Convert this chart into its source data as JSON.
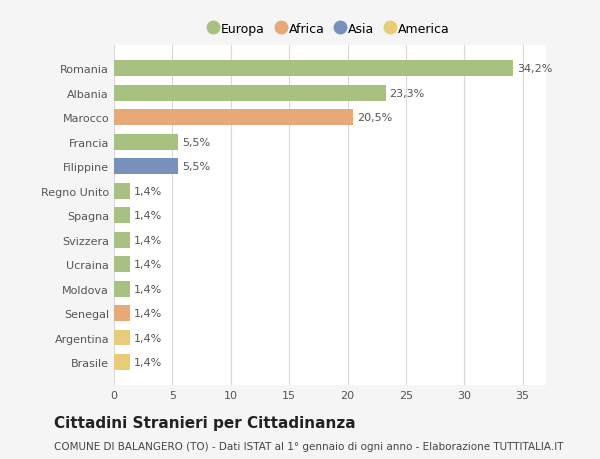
{
  "categories": [
    "Brasile",
    "Argentina",
    "Senegal",
    "Moldova",
    "Ucraina",
    "Svizzera",
    "Spagna",
    "Regno Unito",
    "Filippine",
    "Francia",
    "Marocco",
    "Albania",
    "Romania"
  ],
  "values": [
    1.4,
    1.4,
    1.4,
    1.4,
    1.4,
    1.4,
    1.4,
    1.4,
    5.5,
    5.5,
    20.5,
    23.3,
    34.2
  ],
  "colors": [
    "#e8cc78",
    "#e8cc78",
    "#e8a878",
    "#a8c080",
    "#a8c080",
    "#a8c080",
    "#a8c080",
    "#a8c080",
    "#7890bc",
    "#a8c080",
    "#e8a878",
    "#a8c080",
    "#a8c080"
  ],
  "labels": [
    "1,4%",
    "1,4%",
    "1,4%",
    "1,4%",
    "1,4%",
    "1,4%",
    "1,4%",
    "1,4%",
    "5,5%",
    "5,5%",
    "20,5%",
    "23,3%",
    "34,2%"
  ],
  "legend": [
    {
      "label": "Europa",
      "color": "#a8c080"
    },
    {
      "label": "Africa",
      "color": "#e8a878"
    },
    {
      "label": "Asia",
      "color": "#7890bc"
    },
    {
      "label": "America",
      "color": "#e8cc78"
    }
  ],
  "title": "Cittadini Stranieri per Cittadinanza",
  "subtitle": "COMUNE DI BALANGERO (TO) - Dati ISTAT al 1° gennaio di ogni anno - Elaborazione TUTTITALIA.IT",
  "xlim": [
    0,
    37
  ],
  "xticks": [
    0,
    5,
    10,
    15,
    20,
    25,
    30,
    35
  ],
  "background_color": "#f5f5f5",
  "plot_bg_color": "#ffffff",
  "grid_color": "#d8d8d8",
  "title_fontsize": 11,
  "subtitle_fontsize": 7.5,
  "label_fontsize": 8,
  "tick_fontsize": 8,
  "legend_fontsize": 9
}
